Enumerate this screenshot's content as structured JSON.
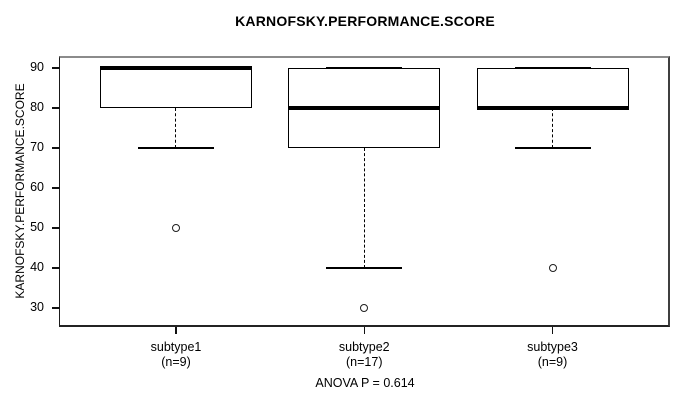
{
  "chart_data": {
    "type": "boxplot",
    "title": "KARNOFSKY.PERFORMANCE.SCORE",
    "xlabel": "",
    "ylabel": "KARNOFSKY.PERFORMANCE.SCORE",
    "annotation": "ANOVA P = 0.614",
    "y_ticks": [
      90,
      80,
      70,
      60,
      50,
      40,
      30
    ],
    "ylim": [
      25.5,
      92.5
    ],
    "grid": false,
    "legend": "none",
    "categories": [
      "subtype1",
      "subtype2",
      "subtype3"
    ],
    "series": [
      {
        "name": "subtype1",
        "n_label": "(n=9)",
        "n": 9,
        "whisker_low": 70,
        "q1": 80,
        "median": 90,
        "q3": 90,
        "whisker_high": 90,
        "outliers": [
          50
        ]
      },
      {
        "name": "subtype2",
        "n_label": "(n=17)",
        "n": 17,
        "whisker_low": 40,
        "q1": 70,
        "median": 80,
        "q3": 90,
        "whisker_high": 90,
        "outliers": [
          30
        ]
      },
      {
        "name": "subtype3",
        "n_label": "(n=9)",
        "n": 9,
        "whisker_low": 70,
        "q1": 80,
        "median": 80,
        "q3": 90,
        "whisker_high": 90,
        "outliers": [
          40
        ]
      }
    ],
    "colors": {
      "line": "#000000",
      "box_fill": "#ffffff",
      "frame": "#8b8b8b",
      "background": "#ffffff",
      "text": "#000000"
    }
  }
}
